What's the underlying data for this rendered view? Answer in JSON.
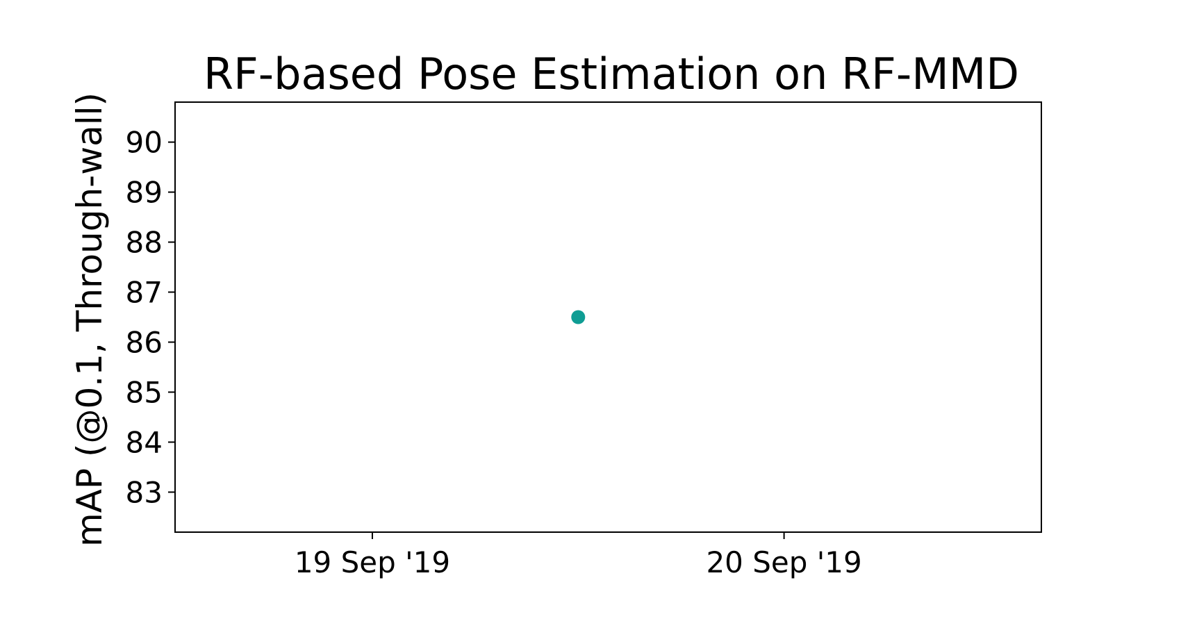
{
  "chart_data": {
    "type": "scatter",
    "title": "RF-based Pose Estimation on RF-MMD",
    "xlabel": "",
    "ylabel": "mAP (@0.1, Through-wall)",
    "x_ticks": [
      {
        "value": "2019-09-19",
        "label": "19 Sep '19"
      },
      {
        "value": "2019-09-20",
        "label": "20 Sep '19"
      }
    ],
    "y_ticks": [
      83,
      84,
      85,
      86,
      87,
      88,
      89,
      90
    ],
    "xlim": [
      "2019-09-18T12:30",
      "2019-09-20T15:00"
    ],
    "ylim": [
      82.2,
      90.8
    ],
    "grid": false,
    "points": [
      {
        "x": "2019-09-19T12:00",
        "y": 86.5
      }
    ],
    "point_color": "#0f9d94"
  }
}
